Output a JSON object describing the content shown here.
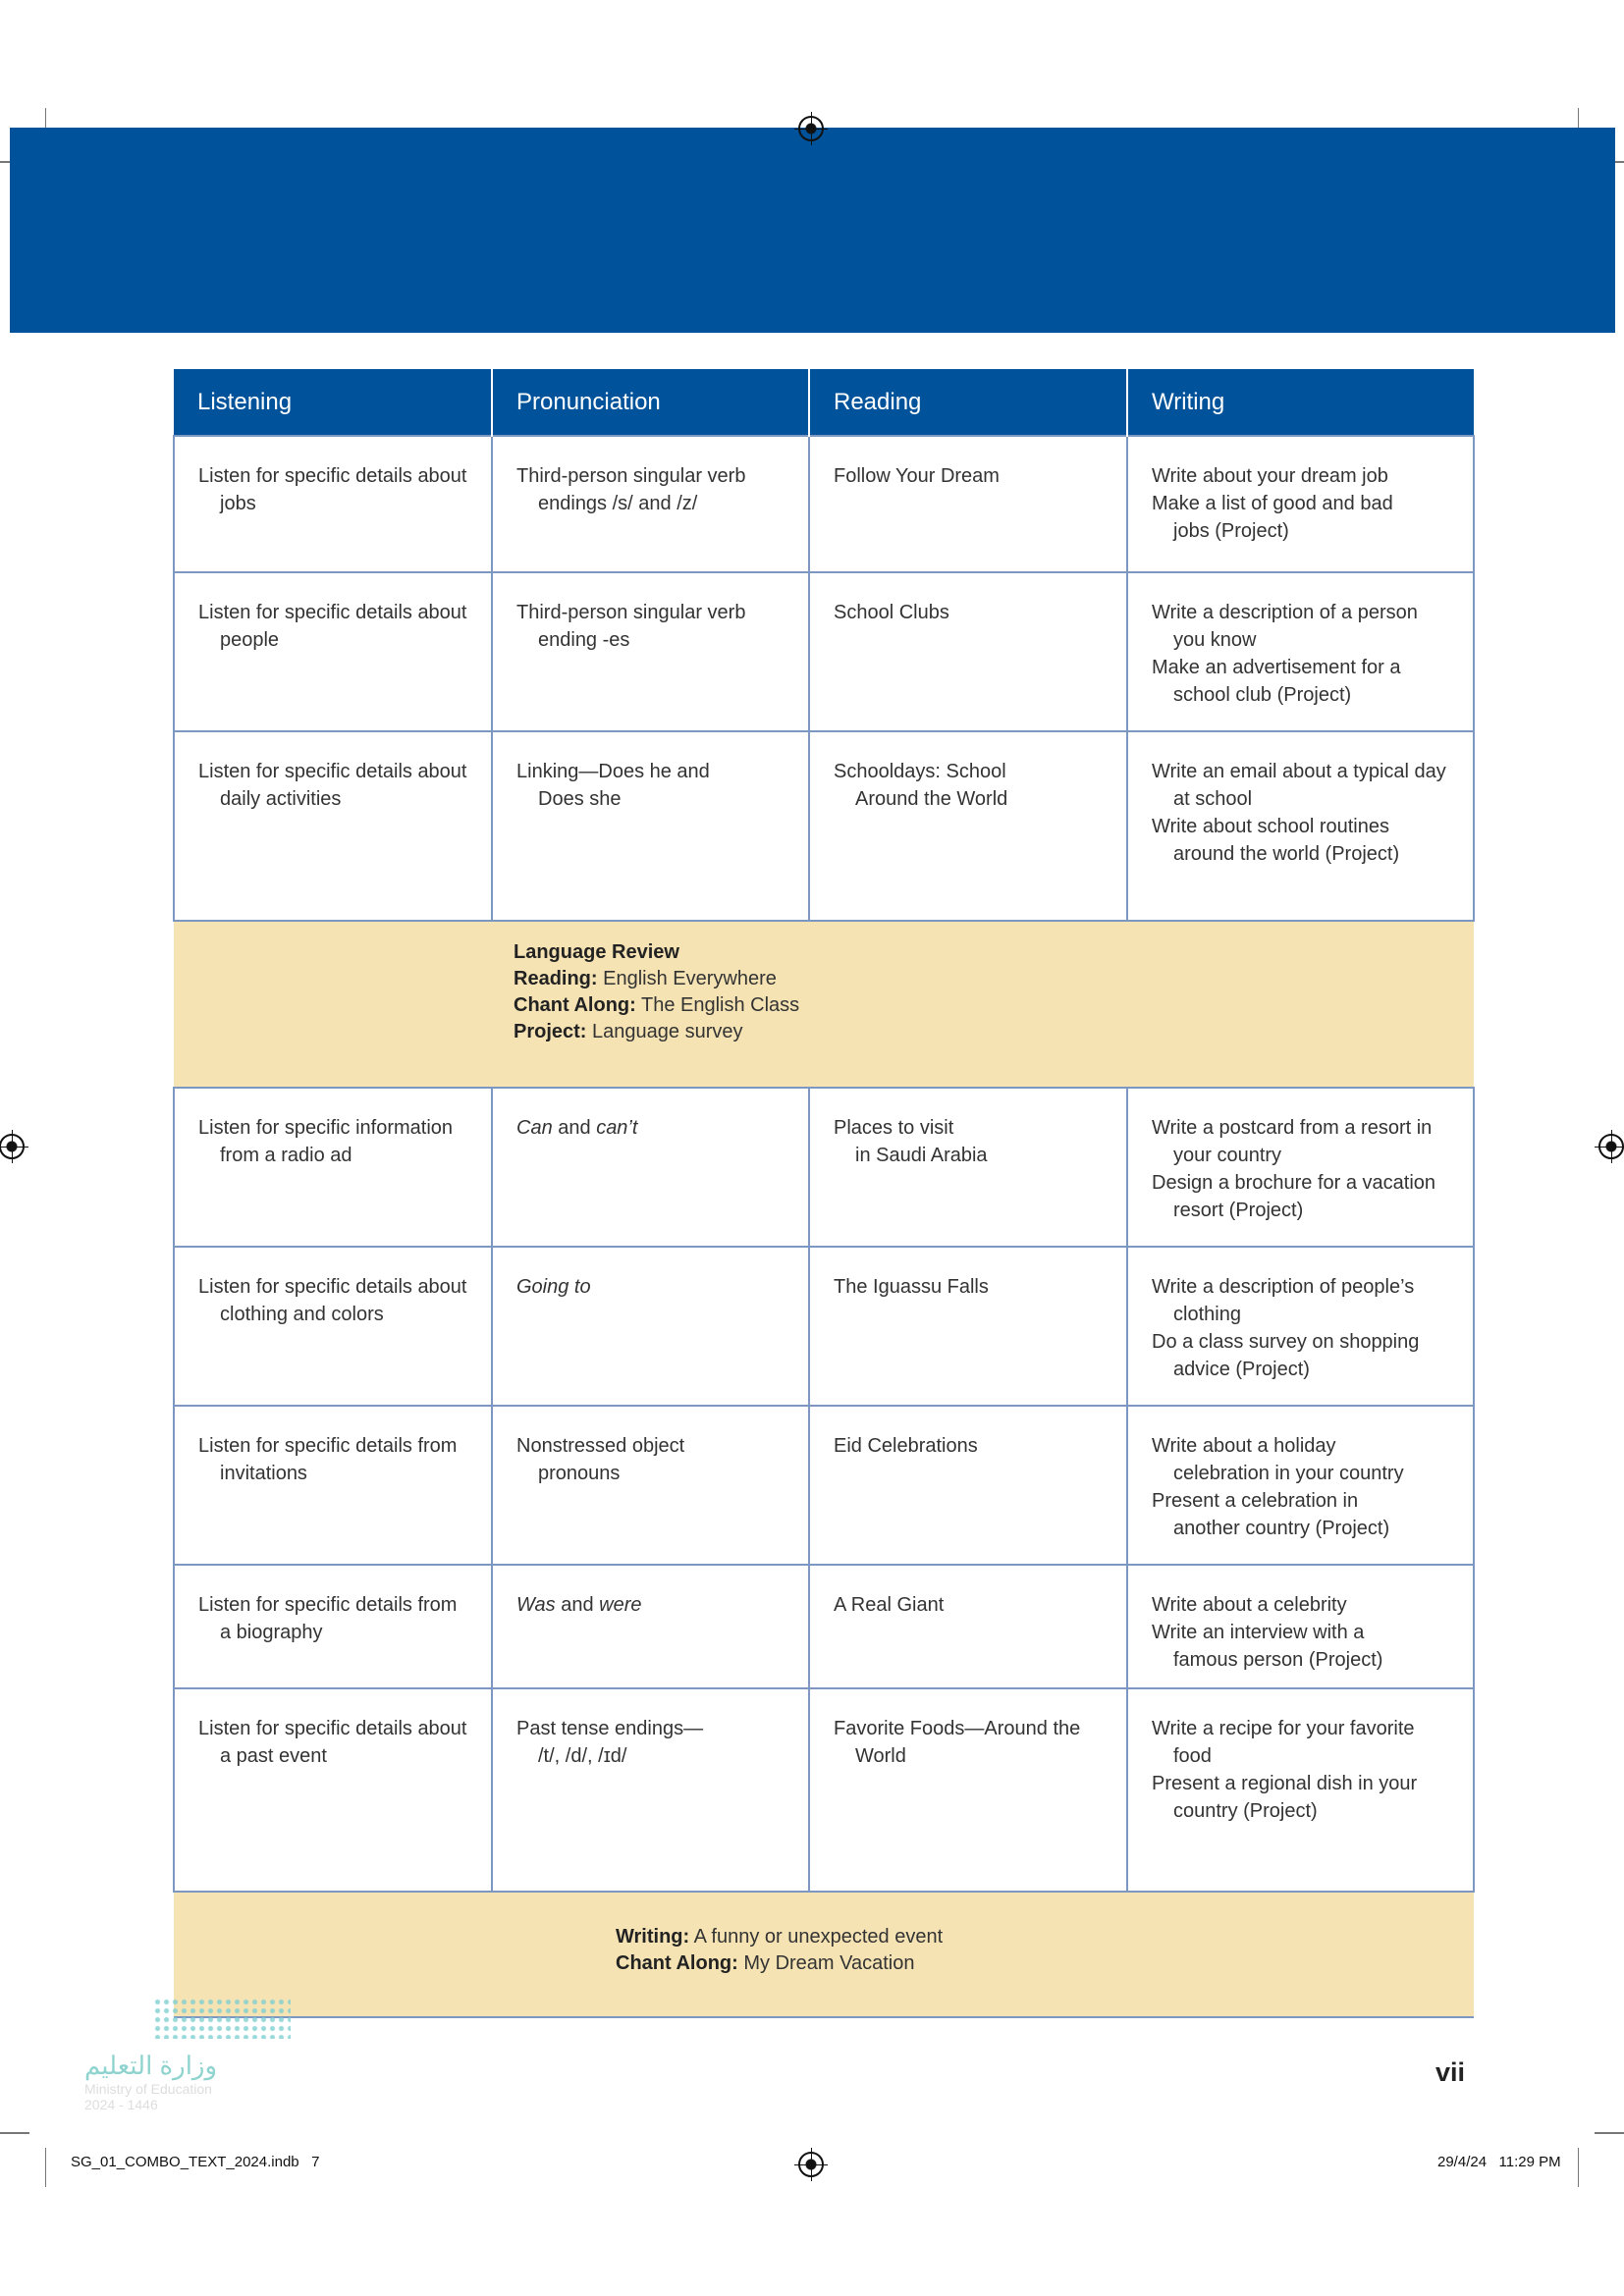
{
  "colors": {
    "header_blue": "#00539a",
    "review_yellow": "#f5e3b4",
    "grid": "#7d97c3"
  },
  "table": {
    "headers": [
      "Listening",
      "Pronunciation",
      "Reading",
      "Writing"
    ],
    "rows": [
      [
        [
          [
            "Listen for specific details about",
            "jobs"
          ]
        ],
        [
          [
            "Third-person singular verb",
            "endings /s/ and /z/"
          ]
        ],
        [
          [
            "Follow Your Dream"
          ]
        ],
        [
          [
            "Write about your dream job"
          ],
          [
            "Make a list of good and bad",
            "jobs (Project)"
          ]
        ]
      ],
      [
        [
          [
            "Listen for specific details about",
            "people"
          ]
        ],
        [
          [
            "Third-person singular verb",
            "ending -es"
          ]
        ],
        [
          [
            "School Clubs"
          ]
        ],
        [
          [
            "Write a description of a person",
            "you know"
          ],
          [
            "Make an advertisement for a",
            "school club (Project)"
          ]
        ]
      ],
      [
        [
          [
            "Listen for specific details about",
            "daily activities"
          ]
        ],
        [
          [
            "Linking—Does he and",
            "Does she"
          ]
        ],
        [
          [
            "Schooldays: School",
            "Around the World"
          ]
        ],
        [
          [
            "Write an email about a typical day",
            "at school"
          ],
          [
            "Write about school routines",
            "around the world (Project)"
          ]
        ]
      ],
      "review1",
      [
        [
          [
            "Listen for specific information",
            "from a radio ad"
          ]
        ],
        [
          [
            "*Can* and *can’t*"
          ]
        ],
        [
          [
            "Places to visit",
            "in Saudi Arabia"
          ]
        ],
        [
          [
            "Write a postcard from a resort in",
            "your country"
          ],
          [
            "Design a brochure for a vacation",
            "resort (Project)"
          ]
        ]
      ],
      [
        [
          [
            "Listen for specific details about",
            "clothing and colors"
          ]
        ],
        [
          [
            "*Going to*"
          ]
        ],
        [
          [
            "The Iguassu Falls"
          ]
        ],
        [
          [
            "Write a description of people’s",
            "clothing"
          ],
          [
            "Do a class survey on shopping",
            "advice (Project)"
          ]
        ]
      ],
      [
        [
          [
            "Listen for specific details from",
            "invitations"
          ]
        ],
        [
          [
            "Nonstressed object",
            "pronouns"
          ]
        ],
        [
          [
            "Eid Celebrations"
          ]
        ],
        [
          [
            "Write about a holiday",
            "celebration in your country"
          ],
          [
            "Present a celebration in",
            "another country (Project)"
          ]
        ]
      ],
      [
        [
          [
            "Listen for specific details from",
            "a biography"
          ]
        ],
        [
          [
            "*Was* and *were*"
          ]
        ],
        [
          [
            "A Real Giant"
          ]
        ],
        [
          [
            "Write about a celebrity"
          ],
          [
            "Write an interview with a",
            "famous person (Project)"
          ]
        ]
      ],
      [
        [
          [
            "Listen for specific details about",
            "a past event"
          ]
        ],
        [
          [
            "Past tense endings—",
            "/t/, /d/, /ɪd/"
          ]
        ],
        [
          [
            "Favorite Foods—Around the",
            "World"
          ]
        ],
        [
          [
            "Write a recipe for your favorite",
            "food"
          ],
          [
            "Present a regional dish in your",
            "country (Project)"
          ]
        ]
      ],
      "review2"
    ]
  },
  "review1": {
    "title": "Language Review",
    "lines": [
      {
        "label": "Reading:",
        "text": " English Everywhere"
      },
      {
        "label": "Chant Along:",
        "text": " The English Class"
      },
      {
        "label": "Project:",
        "text": " Language survey"
      }
    ]
  },
  "review2": {
    "lines": [
      {
        "label": "Writing:",
        "text": " A funny or unexpected event"
      },
      {
        "label": "Chant Along:",
        "text": " My Dream Vacation"
      }
    ]
  },
  "footer": {
    "page_number": "vii",
    "slug_left": "SG_01_COMBO_TEXT_2024.indb   7",
    "slug_right": "29/4/24   11:29 PM"
  },
  "logo": {
    "arabic": "وزارة التعليم",
    "english": "Ministry of Education",
    "year": "2024 - 1446"
  }
}
